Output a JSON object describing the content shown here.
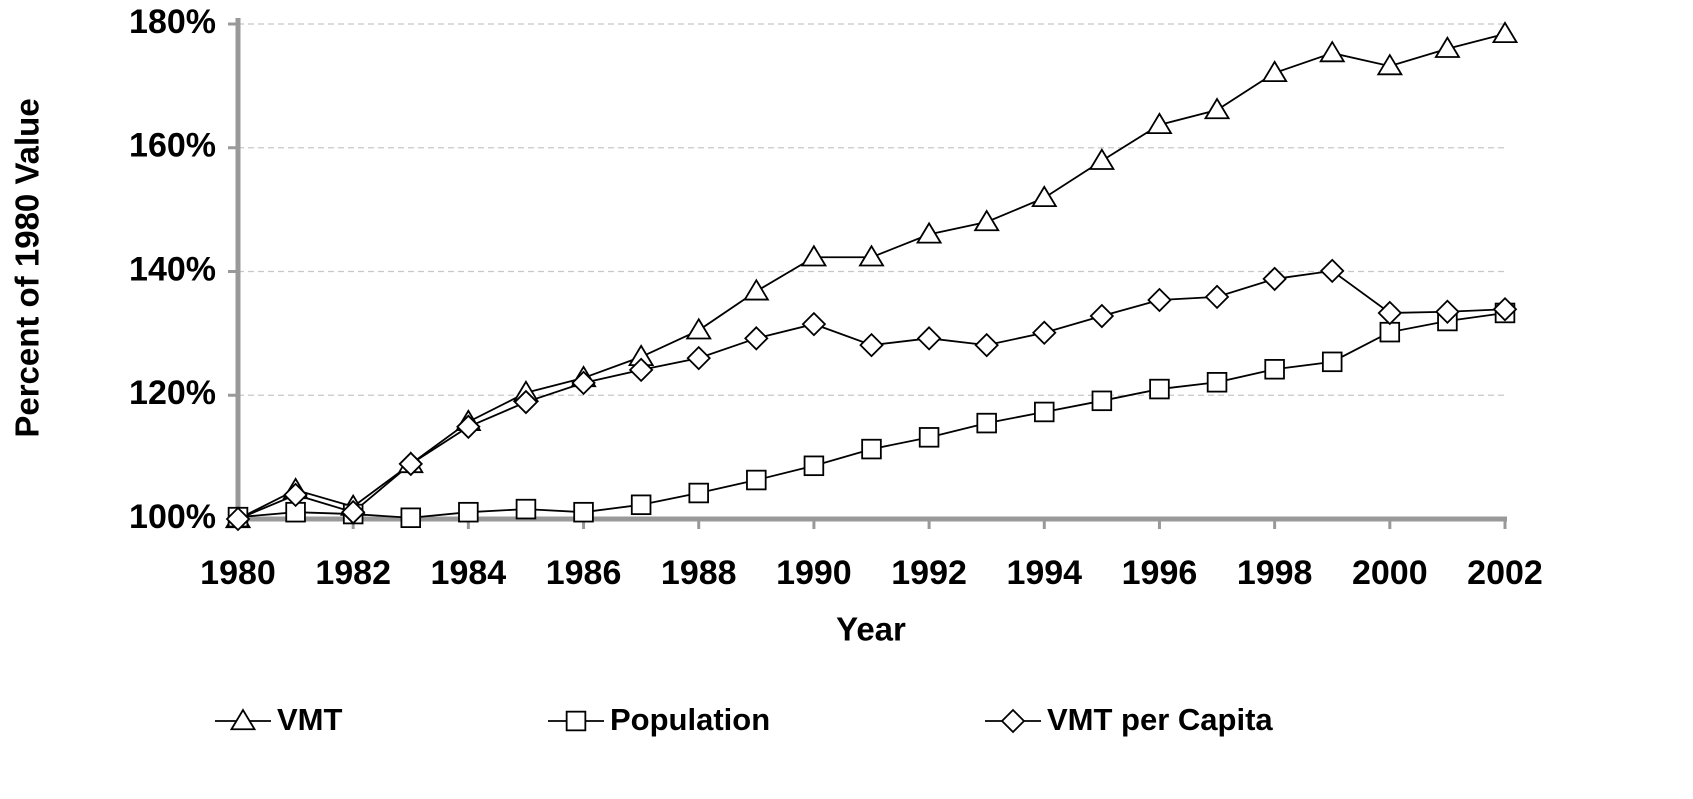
{
  "chart_data": {
    "type": "line",
    "y_label": "Percent of 1980 Value",
    "x_label": "Year",
    "x": [
      1980,
      1981,
      1982,
      1983,
      1984,
      1985,
      1986,
      1987,
      1988,
      1989,
      1990,
      1991,
      1992,
      1993,
      1994,
      1995,
      1996,
      1997,
      1998,
      1999,
      2000,
      2001,
      2002
    ],
    "xlim": [
      1980,
      2002
    ],
    "xticks": [
      1980,
      1982,
      1984,
      1986,
      1988,
      1990,
      1992,
      1994,
      1996,
      1998,
      2000,
      2002
    ],
    "ylim": [
      100,
      180
    ],
    "yticks": [
      {
        "value": 100,
        "label": "100%"
      },
      {
        "value": 120,
        "label": "120%"
      },
      {
        "value": 140,
        "label": "140%"
      },
      {
        "value": 160,
        "label": "160%"
      },
      {
        "value": 180,
        "label": "180%"
      }
    ],
    "grid": true,
    "legend": "bottom",
    "series": [
      {
        "name": "VMT",
        "color": "#000000",
        "marker": "triangle",
        "values": [
          100,
          104.7,
          102,
          108.9,
          115.7,
          120.4,
          122.8,
          126.2,
          130.5,
          136.8,
          142.3,
          142.3,
          146,
          148,
          151.9,
          157.9,
          163.7,
          166.1,
          172.1,
          175.3,
          173.2,
          176,
          178.4
        ]
      },
      {
        "name": "Population",
        "color": "#000000",
        "marker": "square",
        "values": [
          100.3,
          101.1,
          100.8,
          100.2,
          101.1,
          101.6,
          101.1,
          102.3,
          104.2,
          106.3,
          108.6,
          111.3,
          113.2,
          115.5,
          117.3,
          119.1,
          121,
          122.1,
          124.2,
          125.4,
          130.2,
          132,
          133.3
        ]
      },
      {
        "name": "VMT per Capita",
        "color": "#000000",
        "marker": "diamond",
        "values": [
          100,
          103.9,
          101.1,
          108.9,
          114.9,
          118.9,
          122,
          124.1,
          126,
          129.2,
          131.5,
          128.1,
          129.2,
          128.1,
          130.1,
          132.8,
          135.4,
          135.9,
          138.8,
          140.1,
          133.3,
          133.5,
          133.9
        ]
      }
    ]
  }
}
